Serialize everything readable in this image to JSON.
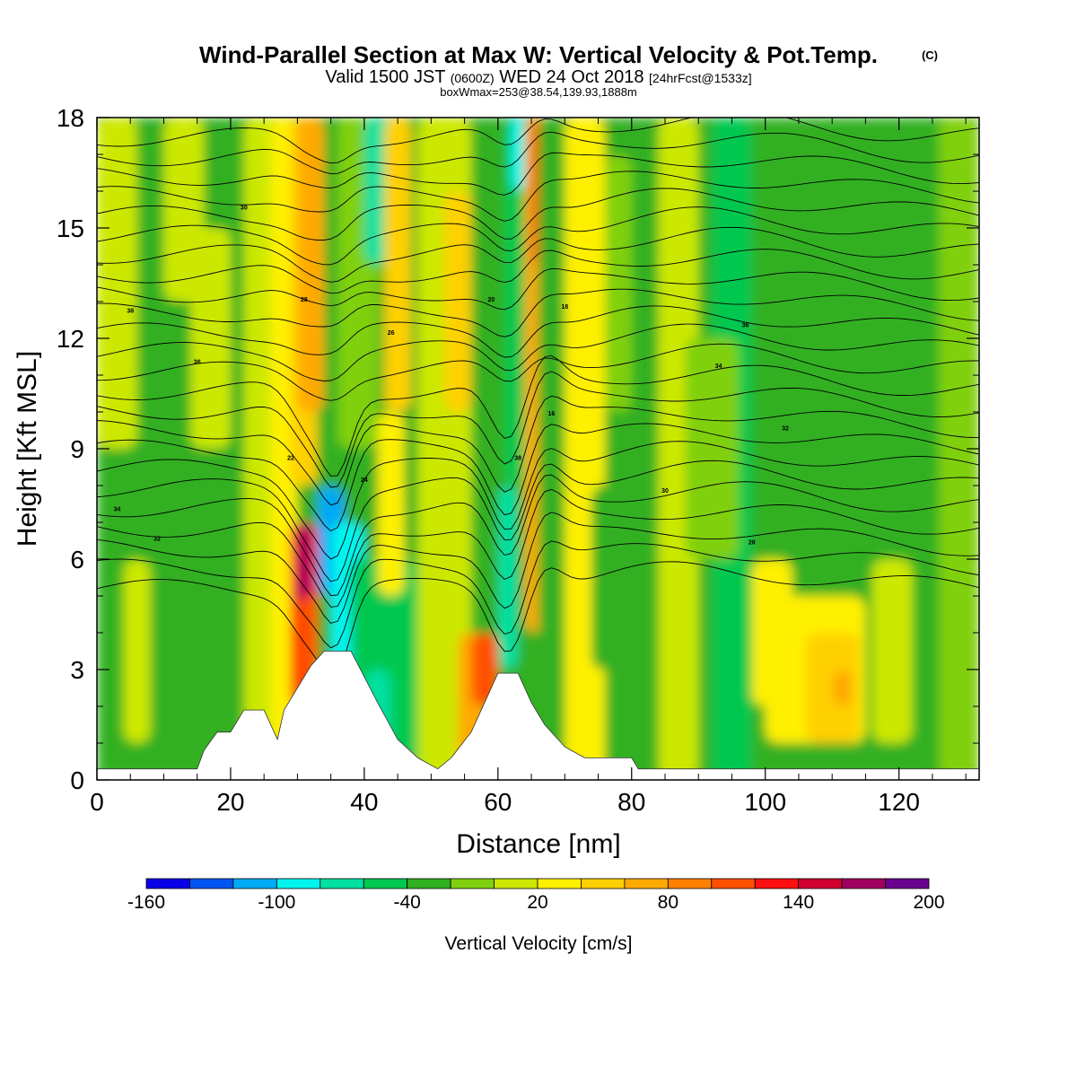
{
  "title": "Wind-Parallel Section at Max W: Vertical Velocity & Pot.Temp.",
  "copyright": "(C)",
  "subtitle_main": "Valid 1500 JST",
  "subtitle_utc": "(0600Z)",
  "subtitle_date": "WED 24 Oct 2018",
  "subtitle_fcst": "[24hrFcst@1533z]",
  "subtitle_box": "boxWmax=253@38.54,139.93,1888m",
  "chart_data": {
    "type": "heatmap",
    "xlabel": "Distance [nm]",
    "ylabel": "Height [Kft MSL]",
    "xlim": [
      0,
      132
    ],
    "ylim": [
      0,
      18
    ],
    "xticks": [
      0,
      20,
      40,
      60,
      80,
      100,
      120
    ],
    "yticks": [
      0,
      3,
      6,
      9,
      12,
      15,
      18
    ],
    "colorbar": {
      "label": "Vertical Velocity [cm/s]",
      "min": -160,
      "max": 200,
      "step": 20,
      "tick_labels": [
        "-160",
        "-100",
        "-40",
        "20",
        "80",
        "140",
        "200"
      ],
      "tick_values": [
        -160,
        -100,
        -40,
        20,
        80,
        140,
        200
      ],
      "colors": [
        "#0a00e6",
        "#0055f0",
        "#00aaf5",
        "#00f5f0",
        "#00e0a0",
        "#00c850",
        "#30b020",
        "#80d010",
        "#cce800",
        "#fff000",
        "#ffd000",
        "#ffaa00",
        "#ff8000",
        "#ff5000",
        "#ff1010",
        "#d00030",
        "#a00060",
        "#6a0090"
      ]
    },
    "series": [
      {
        "name": "Vertical Velocity",
        "unit": "cm/s",
        "max": 253,
        "max_location": "38.54,139.93",
        "max_height": "1888m"
      },
      {
        "name": "Potential Temperature"
      }
    ],
    "terrain_kft": [
      [
        0,
        0.3
      ],
      [
        15,
        0.3
      ],
      [
        16,
        0.8
      ],
      [
        18,
        1.3
      ],
      [
        20,
        1.3
      ],
      [
        22,
        1.9
      ],
      [
        25,
        1.9
      ],
      [
        27,
        1.1
      ],
      [
        28,
        1.9
      ],
      [
        30,
        2.5
      ],
      [
        32,
        3.1
      ],
      [
        34,
        3.5
      ],
      [
        38,
        3.5
      ],
      [
        40,
        2.8
      ],
      [
        42,
        2.1
      ],
      [
        45,
        1.1
      ],
      [
        48,
        0.6
      ],
      [
        51,
        0.3
      ],
      [
        53,
        0.6
      ],
      [
        56,
        1.3
      ],
      [
        58,
        2.1
      ],
      [
        60,
        2.9
      ],
      [
        63,
        2.9
      ],
      [
        65,
        2.1
      ],
      [
        67,
        1.5
      ],
      [
        70,
        0.9
      ],
      [
        73,
        0.6
      ],
      [
        80,
        0.6
      ],
      [
        81,
        0.3
      ],
      [
        132,
        0.3
      ]
    ],
    "contour_labels": [
      "38",
      "36",
      "34",
      "32",
      "30",
      "28",
      "26",
      "24",
      "22",
      "20",
      "18",
      "16"
    ]
  }
}
